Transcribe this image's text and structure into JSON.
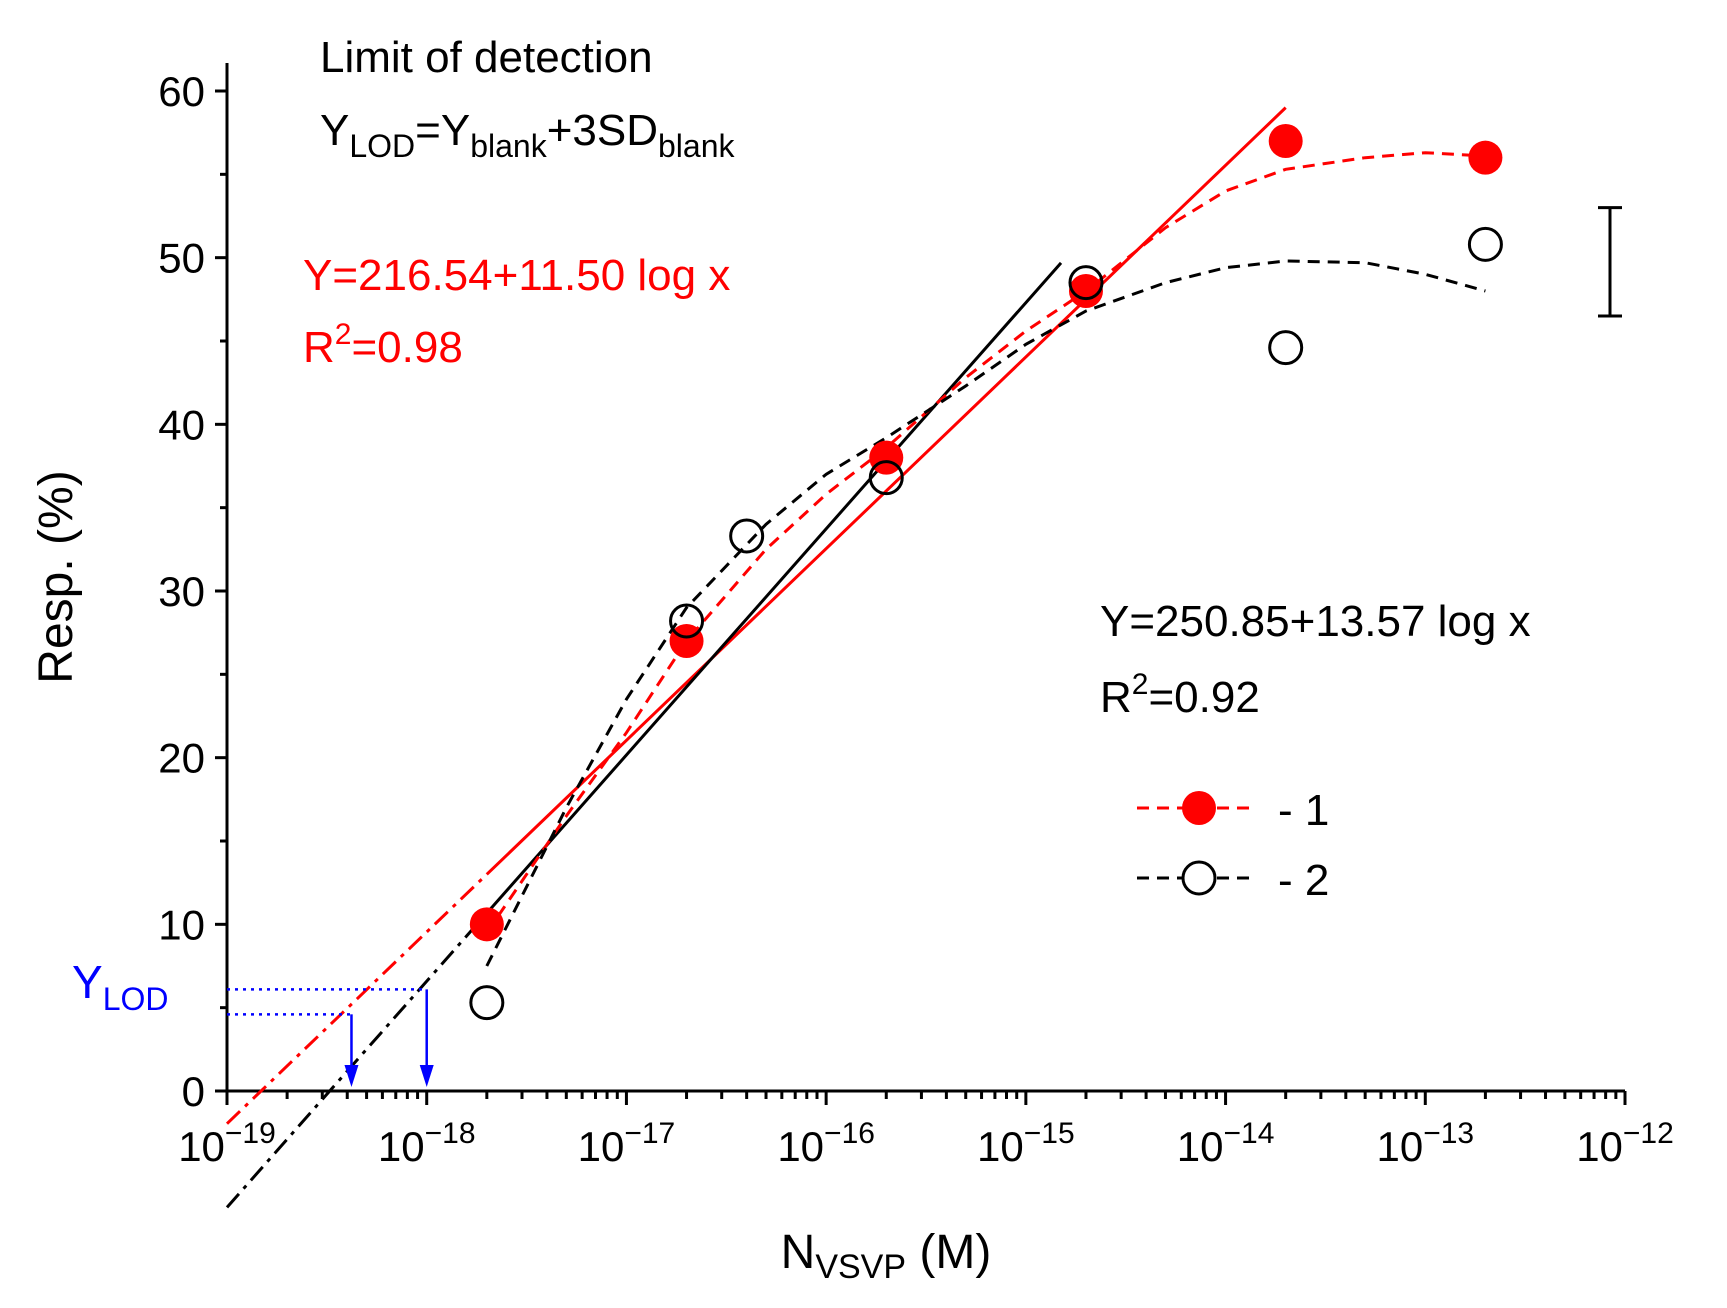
{
  "colors": {
    "series1": "#ff0000",
    "series2": "#000000",
    "lod": "#0000ff",
    "axis": "#000000"
  },
  "chart_data": {
    "type": "scatter",
    "xscale": "log",
    "xlim": [
      1e-19,
      1e-12
    ],
    "ylim": [
      0,
      60
    ],
    "ylabel": "Resp. (%)",
    "xlabel": {
      "main": "N",
      "sub": "VSVP",
      "unit": " (M)"
    },
    "xticks": [
      {
        "value": 1e-19,
        "base": "10",
        "exp": "−19"
      },
      {
        "value": 1e-18,
        "base": "10",
        "exp": "−18"
      },
      {
        "value": 1e-17,
        "base": "10",
        "exp": "−17"
      },
      {
        "value": 1e-16,
        "base": "10",
        "exp": "−16"
      },
      {
        "value": 1e-15,
        "base": "10",
        "exp": "−15"
      },
      {
        "value": 1e-14,
        "base": "10",
        "exp": "−14"
      },
      {
        "value": 1e-13,
        "base": "10",
        "exp": "−13"
      },
      {
        "value": 1e-12,
        "base": "10",
        "exp": "−12"
      }
    ],
    "yticks": [
      0,
      10,
      20,
      30,
      40,
      50,
      60
    ],
    "series": [
      {
        "name": "1",
        "marker": "filled-circle",
        "x": [
          2e-18,
          2e-17,
          2e-16,
          2e-15,
          2e-14,
          2e-13
        ],
        "y": [
          10.0,
          27.0,
          38.0,
          48.0,
          57.0,
          56.0
        ],
        "trend_x": [
          2e-18,
          5e-18,
          1e-17,
          2e-17,
          5e-17,
          1e-16,
          2e-16,
          5e-16,
          1e-15,
          2e-15,
          5e-15,
          1e-14,
          2e-14,
          5e-14,
          1e-13,
          2e-13
        ],
        "trend_y": [
          9.5,
          16.5,
          21.5,
          27.0,
          32.5,
          35.8,
          38.6,
          42.8,
          45.6,
          48.0,
          51.8,
          54.0,
          55.3,
          56.0,
          56.3,
          56.1
        ],
        "fit": {
          "intercept": 216.54,
          "slope": 11.5,
          "x_from": 1e-19,
          "x_to": 2e-14,
          "x_solid_from": 2e-18
        }
      },
      {
        "name": "2",
        "marker": "open-circle",
        "x": [
          2e-18,
          2e-17,
          4e-17,
          2e-16,
          2e-15,
          2e-14,
          2e-13
        ],
        "y": [
          5.3,
          28.2,
          33.3,
          36.8,
          48.5,
          44.6,
          50.8
        ],
        "trend_x": [
          2e-18,
          5e-18,
          1e-17,
          2e-17,
          5e-17,
          1e-16,
          2e-16,
          5e-16,
          1e-15,
          2e-15,
          5e-15,
          1e-14,
          2e-14,
          5e-14,
          1e-13,
          2e-13
        ],
        "trend_y": [
          7.5,
          17.0,
          23.5,
          29.0,
          34.0,
          37.0,
          39.2,
          42.3,
          44.8,
          46.8,
          48.5,
          49.4,
          49.8,
          49.7,
          49.0,
          48.0
        ],
        "fit": {
          "intercept": 250.85,
          "slope": 13.57,
          "x_from": 1e-19,
          "x_to": 1.5e-15,
          "x_solid_from": 2e-18
        }
      }
    ],
    "error_bar": {
      "x": 1e-12,
      "y_low": 46.5,
      "y_high": 53.0
    },
    "lod": {
      "label_main": "Y",
      "label_sub": "LOD",
      "levels": [
        {
          "series": "1",
          "y": 4.6,
          "x": 4.2e-19
        },
        {
          "series": "2",
          "y": 6.1,
          "x": 1e-18
        }
      ]
    },
    "annotations": {
      "lod_title": "Limit of detection",
      "lod_formula": {
        "y": "Y",
        "lod_sub": "LOD",
        "eq": "=Y",
        "blank_sub1": "blank",
        "plus": "+3SD",
        "blank_sub2": "blank"
      },
      "fit1": {
        "equation": "Y=216.54+11.50 log x",
        "r2_prefix": "R",
        "r2_sup": "2",
        "r2_value": "=0.98"
      },
      "fit2": {
        "equation": "Y=250.85+13.57 log x",
        "r2_prefix": "R",
        "r2_sup": "2",
        "r2_value": "=0.92"
      }
    },
    "legend": {
      "position": "lower-right",
      "entries": [
        {
          "label": "- 1",
          "series": "1"
        },
        {
          "label": "- 2",
          "series": "2"
        }
      ]
    }
  }
}
